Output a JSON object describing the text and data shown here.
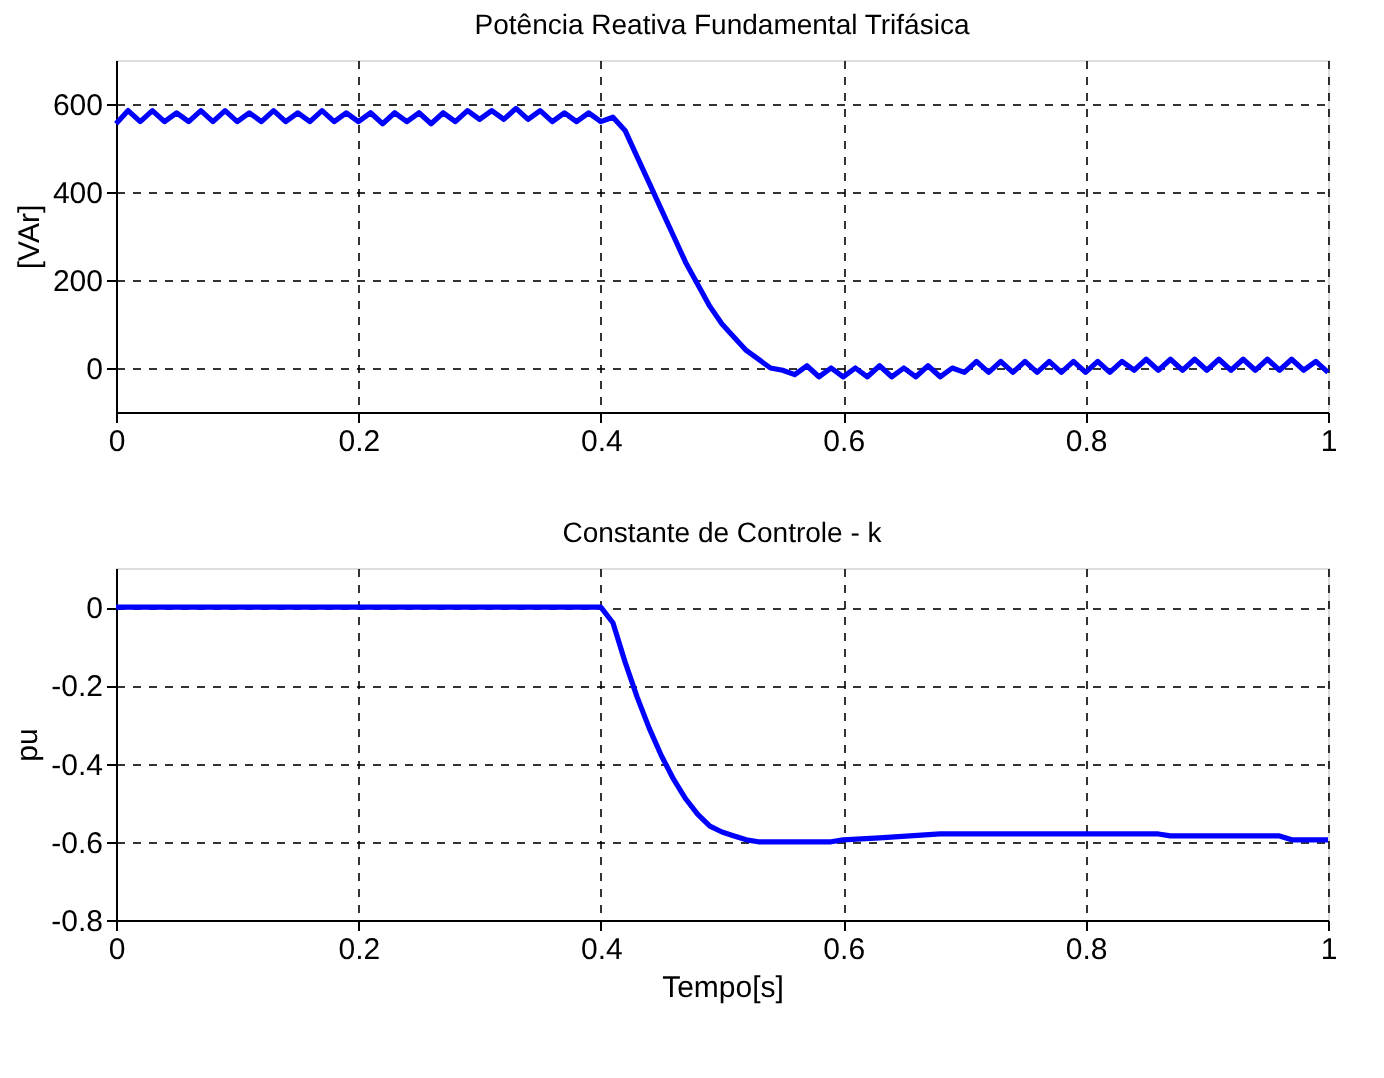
{
  "chart_data": [
    {
      "type": "line",
      "title": "Potência Reativa Fundamental Trifásica",
      "ylabel": "[VAr]",
      "xlim": [
        0,
        1
      ],
      "ylim": [
        -100,
        700
      ],
      "xticks": [
        0,
        0.2,
        0.4,
        0.6,
        0.8,
        1
      ],
      "yticks": [
        0,
        200,
        400,
        600
      ],
      "grid": true,
      "line_style": "solid",
      "marker": "none",
      "series": [
        {
          "color": "#0000ff",
          "x": [
            0,
            0.01,
            0.02,
            0.03,
            0.04,
            0.05,
            0.06,
            0.07,
            0.08,
            0.09,
            0.1,
            0.11,
            0.12,
            0.13,
            0.14,
            0.15,
            0.16,
            0.17,
            0.18,
            0.19,
            0.2,
            0.21,
            0.22,
            0.23,
            0.24,
            0.25,
            0.26,
            0.27,
            0.28,
            0.29,
            0.3,
            0.31,
            0.32,
            0.33,
            0.34,
            0.35,
            0.36,
            0.37,
            0.38,
            0.39,
            0.4,
            0.41,
            0.42,
            0.43,
            0.44,
            0.45,
            0.46,
            0.47,
            0.48,
            0.49,
            0.5,
            0.51,
            0.52,
            0.53,
            0.54,
            0.55,
            0.56,
            0.57,
            0.58,
            0.59,
            0.6,
            0.61,
            0.62,
            0.63,
            0.64,
            0.65,
            0.66,
            0.67,
            0.68,
            0.69,
            0.7,
            0.71,
            0.72,
            0.73,
            0.74,
            0.75,
            0.76,
            0.77,
            0.78,
            0.79,
            0.8,
            0.81,
            0.82,
            0.83,
            0.84,
            0.85,
            0.86,
            0.87,
            0.88,
            0.89,
            0.9,
            0.91,
            0.92,
            0.93,
            0.94,
            0.95,
            0.96,
            0.97,
            0.98,
            0.99,
            1
          ],
          "values": [
            555,
            585,
            560,
            585,
            560,
            580,
            560,
            585,
            560,
            585,
            560,
            580,
            560,
            585,
            560,
            580,
            560,
            585,
            560,
            580,
            560,
            580,
            555,
            580,
            560,
            580,
            555,
            580,
            560,
            585,
            565,
            585,
            565,
            590,
            565,
            585,
            560,
            580,
            560,
            580,
            560,
            570,
            540,
            480,
            420,
            360,
            300,
            240,
            190,
            140,
            100,
            70,
            40,
            20,
            0,
            -5,
            -15,
            5,
            -20,
            0,
            -20,
            0,
            -20,
            5,
            -20,
            0,
            -20,
            5,
            -20,
            0,
            -10,
            15,
            -10,
            15,
            -10,
            15,
            -10,
            15,
            -10,
            15,
            -10,
            15,
            -10,
            15,
            -5,
            20,
            -5,
            20,
            -5,
            20,
            -5,
            20,
            -5,
            20,
            -5,
            20,
            -5,
            20,
            -5,
            15,
            -10
          ]
        }
      ]
    },
    {
      "type": "line",
      "title": "Constante de Controle - k",
      "xlabel": "Tempo[s]",
      "ylabel": "pu",
      "xlim": [
        0,
        1
      ],
      "ylim": [
        -0.8,
        0.1
      ],
      "xticks": [
        0,
        0.2,
        0.4,
        0.6,
        0.8,
        1
      ],
      "yticks": [
        0,
        -0.2,
        -0.4,
        -0.6,
        -0.8
      ],
      "grid": true,
      "line_style": "solid",
      "marker": "none",
      "series": [
        {
          "color": "#0000ff",
          "x": [
            0,
            0.4,
            0.41,
            0.42,
            0.43,
            0.44,
            0.45,
            0.46,
            0.47,
            0.48,
            0.49,
            0.5,
            0.51,
            0.52,
            0.53,
            0.59,
            0.6,
            0.63,
            0.68,
            0.86,
            0.87,
            0.96,
            0.97,
            1
          ],
          "values": [
            0,
            0,
            -0.04,
            -0.14,
            -0.23,
            -0.31,
            -0.38,
            -0.44,
            -0.49,
            -0.53,
            -0.56,
            -0.575,
            -0.585,
            -0.595,
            -0.6,
            -0.6,
            -0.595,
            -0.59,
            -0.58,
            -0.58,
            -0.585,
            -0.585,
            -0.595,
            -0.595
          ]
        }
      ]
    }
  ]
}
